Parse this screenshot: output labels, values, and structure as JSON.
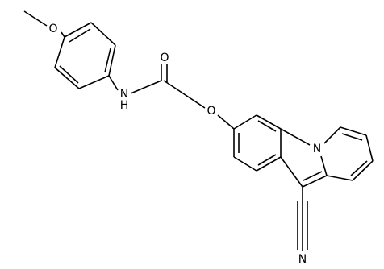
{
  "atoms": [
    {
      "label": "O"
    },
    {
      "label": "O"
    },
    {
      "label": "N"
    },
    {
      "label": "H"
    },
    {
      "label": "O"
    },
    {
      "label": "N"
    },
    {
      "label": "N"
    }
  ]
}
